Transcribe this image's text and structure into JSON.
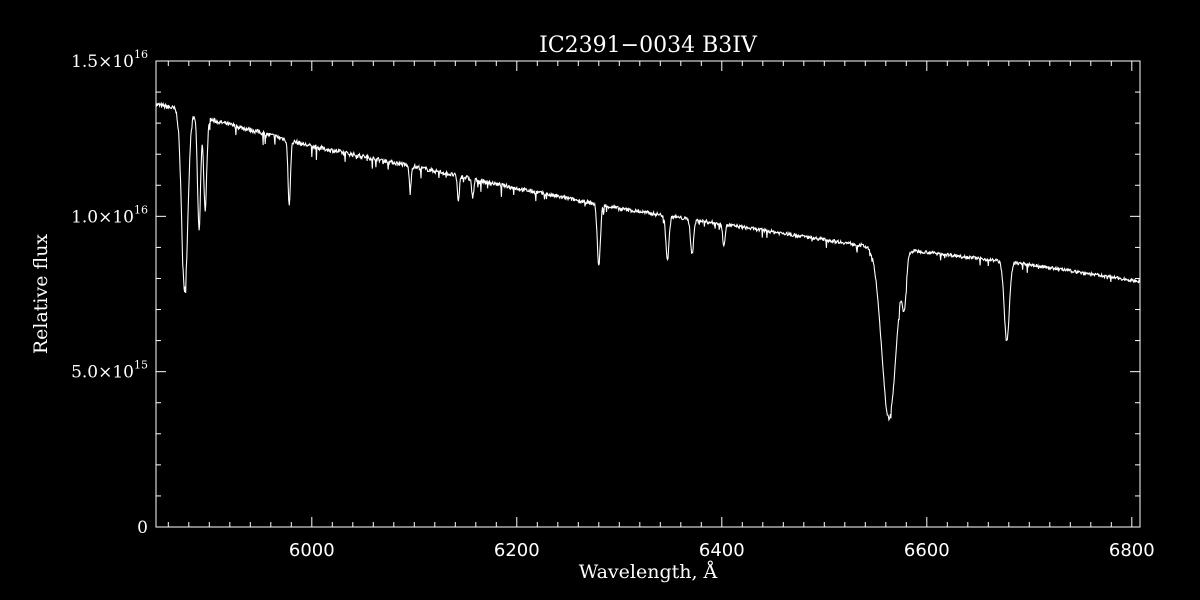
{
  "colors": {
    "background": "#000000",
    "foreground": "#ffffff"
  },
  "chart_data": {
    "type": "line",
    "title": "IC2391−0034   B3IV",
    "xlabel": "Wavelength, Å",
    "ylabel": "Relative flux",
    "xlim": [
      5848,
      6808
    ],
    "ylim": [
      0,
      1.5e+16
    ],
    "x_ticks": [
      {
        "value": 6000,
        "label": "6000"
      },
      {
        "value": 6200,
        "label": "6200"
      },
      {
        "value": 6400,
        "label": "6400"
      },
      {
        "value": 6600,
        "label": "6600"
      },
      {
        "value": 6800,
        "label": "6800"
      }
    ],
    "y_ticks": [
      {
        "value": 0,
        "mantissa": "0",
        "exponent": ""
      },
      {
        "value": 5000000000000000.0,
        "mantissa": "5.0×10",
        "exponent": "15"
      },
      {
        "value": 1e+16,
        "mantissa": "1.0×10",
        "exponent": "16"
      },
      {
        "value": 1.5e+16,
        "mantissa": "1.5×10",
        "exponent": "16"
      }
    ],
    "series": [
      {
        "continuum": [
          [
            5848,
            1.36e+16
          ],
          [
            5870,
            1.345e+16
          ],
          [
            5890,
            1.32e+16
          ],
          [
            5950,
            1.27e+16
          ],
          [
            6000,
            1.225e+16
          ],
          [
            6100,
            1.16e+16
          ],
          [
            6200,
            1.09e+16
          ],
          [
            6300,
            1.025e+16
          ],
          [
            6400,
            9750000000000000.0
          ],
          [
            6500,
            9250000000000000.0
          ],
          [
            6540,
            9050000000000000.0
          ],
          [
            6600,
            8850000000000000.0
          ],
          [
            6700,
            8450000000000000.0
          ],
          [
            6808,
            7900000000000000.0
          ]
        ],
        "absorption_lines": [
          [
            5876,
            7600000000000000.0,
            3
          ],
          [
            5890,
            9600000000000000.0,
            1.5
          ],
          [
            5896,
            1.02e+16,
            1.5
          ],
          [
            5978,
            1.04e+16,
            1.2
          ],
          [
            6096,
            1.09e+16,
            1.0
          ],
          [
            6143,
            1.05e+16,
            1.0
          ],
          [
            6157,
            1.06e+16,
            1.0
          ],
          [
            6280,
            8400000000000000.0,
            1.5
          ],
          [
            6347,
            8600000000000000.0,
            1.5
          ],
          [
            6371,
            8800000000000000.0,
            1.5
          ],
          [
            6402,
            9100000000000000.0,
            1.2
          ],
          [
            6563,
            3500000000000000.0,
            7
          ],
          [
            6578,
            7400000000000000.0,
            2
          ],
          [
            6678,
            6000000000000000.0,
            2.5
          ]
        ]
      }
    ]
  }
}
